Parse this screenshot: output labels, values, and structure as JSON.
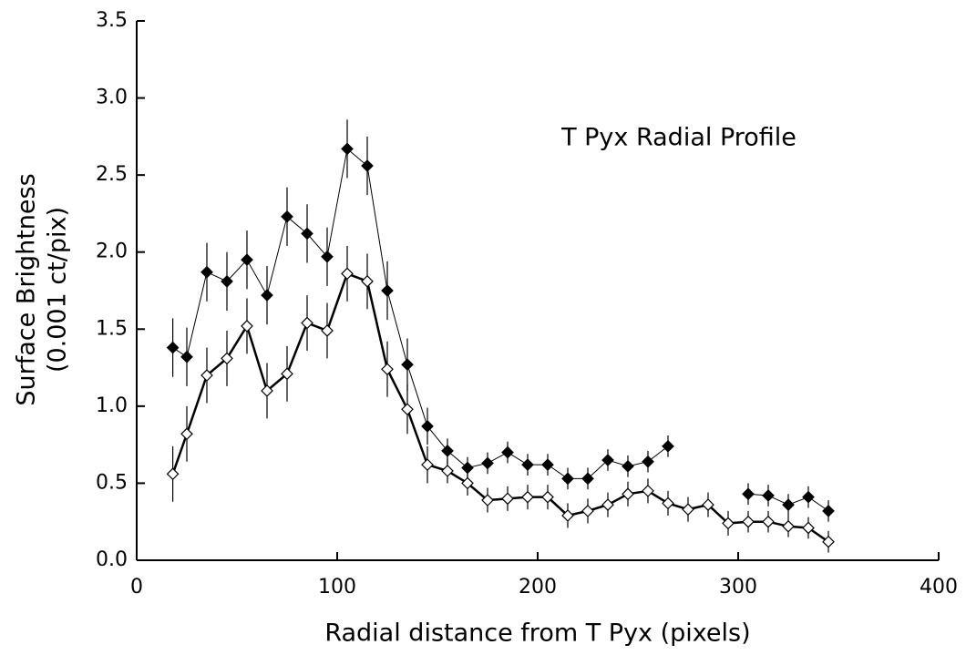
{
  "chart_data": {
    "type": "line",
    "annotation": "T Pyx Radial Profile",
    "x_label": "Radial distance from T Pyx (pixels)",
    "y_label": [
      "Surface Brightness",
      "(0.001 ct/pix)"
    ],
    "x": [
      18,
      25,
      35,
      45,
      55,
      65,
      75,
      85,
      95,
      105,
      115,
      125,
      135,
      145,
      155,
      165,
      175,
      185,
      195,
      205,
      215,
      225,
      235,
      245,
      255,
      265,
      275,
      285,
      295,
      305,
      315,
      325,
      335,
      345
    ],
    "series": [
      {
        "color": "#000000",
        "marker": "filled",
        "line_width": 1,
        "values": [
          1.38,
          1.32,
          1.87,
          1.81,
          1.95,
          1.72,
          2.23,
          2.12,
          1.97,
          2.67,
          2.56,
          1.75,
          1.27,
          0.87,
          0.71,
          0.6,
          0.63,
          0.7,
          0.62,
          0.62,
          0.53,
          0.53,
          0.65,
          0.61,
          0.64,
          0.74,
          null,
          null,
          null,
          0.43,
          0.42,
          0.36,
          0.41,
          0.32
        ],
        "errors": [
          0.19,
          0.19,
          0.19,
          0.19,
          0.19,
          0.19,
          0.19,
          0.19,
          0.19,
          0.19,
          0.19,
          0.19,
          0.17,
          0.12,
          0.08,
          0.07,
          0.07,
          0.07,
          0.07,
          0.07,
          0.07,
          0.07,
          0.07,
          0.07,
          0.07,
          0.07,
          null,
          null,
          null,
          0.07,
          0.07,
          0.07,
          0.07,
          0.07
        ]
      },
      {
        "color": "#000000",
        "marker": "open",
        "line_width": 2.5,
        "values": [
          0.56,
          0.82,
          1.2,
          1.31,
          1.52,
          1.1,
          1.21,
          1.54,
          1.49,
          1.86,
          1.81,
          1.24,
          0.98,
          0.62,
          0.58,
          0.5,
          0.39,
          0.4,
          0.41,
          0.41,
          0.29,
          0.32,
          0.36,
          0.43,
          0.45,
          0.37,
          0.33,
          0.36,
          0.24,
          0.25,
          0.25,
          0.22,
          0.21,
          0.12
        ],
        "errors": [
          0.18,
          0.18,
          0.18,
          0.18,
          0.18,
          0.18,
          0.18,
          0.18,
          0.18,
          0.18,
          0.18,
          0.18,
          0.16,
          0.12,
          0.08,
          0.08,
          0.08,
          0.08,
          0.08,
          0.08,
          0.08,
          0.08,
          0.08,
          0.08,
          0.08,
          0.08,
          0.08,
          0.08,
          0.08,
          0.07,
          0.07,
          0.07,
          0.07,
          0.07
        ]
      }
    ],
    "xlim": [
      0,
      400
    ],
    "xticks": [
      0,
      100,
      200,
      300,
      400
    ],
    "ylim": [
      0,
      3.5
    ],
    "yticks": [
      {
        "value": 0,
        "label": "0.0"
      },
      0.5,
      {
        "value": 1,
        "label": "1.0"
      },
      1.5,
      {
        "value": 2,
        "label": "2.0"
      },
      2.5,
      {
        "value": 3,
        "label": "3.0"
      },
      3.5
    ],
    "grid": false
  }
}
